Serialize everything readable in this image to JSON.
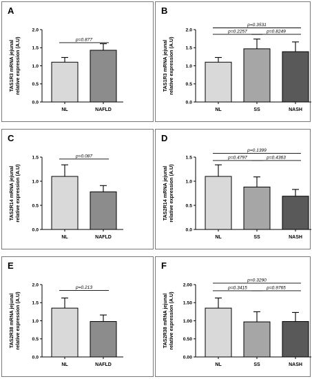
{
  "chart_data": [
    {
      "type": "bar",
      "panel": "A",
      "ylabel_lines": [
        "TAS1R3 mRNA jejunal",
        "relative expression (A.U)"
      ],
      "categories": [
        "NL",
        "NAFLD"
      ],
      "values": [
        1.1,
        1.43
      ],
      "errors": [
        0.13,
        0.18
      ],
      "colors": [
        "#d9d9d9",
        "#8c8c8c"
      ],
      "ylim": [
        0,
        2.0
      ],
      "yticks": [
        0,
        0.5,
        1.0,
        1.5,
        2.0
      ],
      "ytick_labels": [
        "0.0",
        "0.5",
        "1.0",
        "1.5",
        "2.0"
      ],
      "comparisons": [
        {
          "from": 0,
          "to": 1,
          "level": 1.64,
          "label": "p=0.877"
        }
      ]
    },
    {
      "type": "bar",
      "panel": "B",
      "ylabel_lines": [
        "TAS1R3 mRNA jejunal",
        "relative expression (A.U)"
      ],
      "categories": [
        "NL",
        "SS",
        "NASH"
      ],
      "values": [
        1.1,
        1.47,
        1.39
      ],
      "errors": [
        0.13,
        0.27,
        0.27
      ],
      "colors": [
        "#d9d9d9",
        "#a6a6a6",
        "#595959"
      ],
      "ylim": [
        0,
        2.0
      ],
      "yticks": [
        0,
        0.5,
        1.0,
        1.5,
        2.0
      ],
      "ytick_labels": [
        "0.0",
        "0.5",
        "1.0",
        "1.5",
        "2.0"
      ],
      "comparisons": [
        {
          "from": 0,
          "to": 2,
          "level": 2.05,
          "label": "p=0.3531"
        },
        {
          "from": 0,
          "to": 1,
          "level": 1.87,
          "label": "p=0.2257"
        },
        {
          "from": 1,
          "to": 2,
          "level": 1.87,
          "label": "p=0.8249"
        }
      ]
    },
    {
      "type": "bar",
      "panel": "C",
      "ylabel_lines": [
        "TAS2R14 mRNA jejunal",
        "relative expression (A.U)"
      ],
      "categories": [
        "NL",
        "NAFLD"
      ],
      "values": [
        1.1,
        0.78
      ],
      "errors": [
        0.24,
        0.13
      ],
      "colors": [
        "#d9d9d9",
        "#8c8c8c"
      ],
      "ylim": [
        0,
        1.5
      ],
      "yticks": [
        0,
        0.5,
        1.0,
        1.5
      ],
      "ytick_labels": [
        "0.0",
        "0.5",
        "1.0",
        "1.5"
      ],
      "comparisons": [
        {
          "from": 0,
          "to": 1,
          "level": 1.46,
          "label": "p=0.087"
        }
      ]
    },
    {
      "type": "bar",
      "panel": "D",
      "ylabel_lines": [
        "TAS2R14 mRNA jejunal",
        "relative expression (A.U)"
      ],
      "categories": [
        "NL",
        "SS",
        "NASH"
      ],
      "values": [
        1.1,
        0.88,
        0.69
      ],
      "errors": [
        0.24,
        0.21,
        0.14
      ],
      "colors": [
        "#d9d9d9",
        "#a6a6a6",
        "#595959"
      ],
      "ylim": [
        0,
        1.5
      ],
      "yticks": [
        0,
        0.5,
        1.0,
        1.5
      ],
      "ytick_labels": [
        "0.0",
        "0.5",
        "1.0",
        "1.5"
      ],
      "comparisons": [
        {
          "from": 0,
          "to": 2,
          "level": 1.58,
          "label": "p=0.1399"
        },
        {
          "from": 0,
          "to": 1,
          "level": 1.43,
          "label": "p=0.4797"
        },
        {
          "from": 1,
          "to": 2,
          "level": 1.43,
          "label": "p=0.4363"
        }
      ]
    },
    {
      "type": "bar",
      "panel": "E",
      "ylabel_lines": [
        "TAS2R38 mRNA jejunal",
        "relative expression (A.U)"
      ],
      "categories": [
        "NL",
        "NAFLD"
      ],
      "values": [
        1.35,
        0.98
      ],
      "errors": [
        0.28,
        0.18
      ],
      "colors": [
        "#d9d9d9",
        "#8c8c8c"
      ],
      "ylim": [
        0,
        2.0
      ],
      "yticks": [
        0,
        0.5,
        1.0,
        1.5,
        2.0
      ],
      "ytick_labels": [
        "0.0",
        "0.5",
        "1.0",
        "1.5",
        "2.0"
      ],
      "comparisons": [
        {
          "from": 0,
          "to": 1,
          "level": 1.84,
          "label": "p=0.213"
        }
      ]
    },
    {
      "type": "bar",
      "panel": "F",
      "ylabel_lines": [
        "TAS2R38 mRNA jejunal",
        "relative expression (A.U)"
      ],
      "categories": [
        "NL",
        "SS",
        "NASH"
      ],
      "values": [
        1.35,
        0.97,
        0.98
      ],
      "errors": [
        0.28,
        0.28,
        0.25
      ],
      "colors": [
        "#d9d9d9",
        "#a6a6a6",
        "#595959"
      ],
      "ylim": [
        0,
        2.0
      ],
      "yticks": [
        0,
        0.5,
        1.0,
        1.5,
        2.0
      ],
      "ytick_labels": [
        "0.00",
        "0.50",
        "1.00",
        "1.50",
        "2.00"
      ],
      "comparisons": [
        {
          "from": 0,
          "to": 2,
          "level": 2.04,
          "label": "p=0.3290"
        },
        {
          "from": 0,
          "to": 1,
          "level": 1.83,
          "label": "p=0.3415"
        },
        {
          "from": 1,
          "to": 2,
          "level": 1.83,
          "label": "p=0.9765"
        }
      ]
    }
  ]
}
